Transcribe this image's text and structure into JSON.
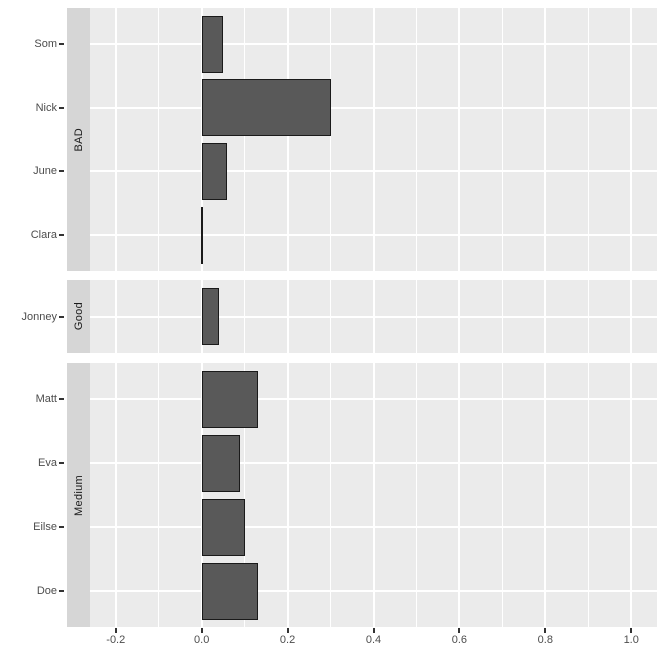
{
  "chart_data": {
    "type": "bar",
    "orientation": "horizontal",
    "title": "",
    "xlabel": "",
    "ylabel": "",
    "xlim": [
      -0.26,
      1.06
    ],
    "x_major_ticks": [
      -0.2,
      0.0,
      0.2,
      0.4,
      0.6,
      0.8,
      1.0
    ],
    "x_tick_labels": [
      "-0.2",
      "0.0",
      "0.2",
      "0.4",
      "0.6",
      "0.8",
      "1.0"
    ],
    "x_minor_ticks": [
      -0.1,
      0.1,
      0.3,
      0.5,
      0.7,
      0.9
    ],
    "grid": "on",
    "legend": "none",
    "facets": [
      {
        "label": "BAD",
        "categories": [
          "Som",
          "Nick",
          "June",
          "Clara"
        ],
        "values": [
          0.05,
          0.3,
          0.06,
          0.0
        ]
      },
      {
        "label": "Good",
        "categories": [
          "Jonney"
        ],
        "values": [
          0.04
        ]
      },
      {
        "label": "Medium",
        "categories": [
          "Matt",
          "Eva",
          "Eilse",
          "Doe"
        ],
        "values": [
          0.13,
          0.09,
          0.1,
          0.13
        ]
      }
    ],
    "colors": {
      "bar_fill": "#595959",
      "bar_border": "#1a1a1a",
      "panel_bg": "#ebebeb",
      "strip_bg": "#d6d6d6",
      "gridline": "#ffffff",
      "tick_mark": "#333333",
      "axis_text": "#4d4d4d",
      "strip_text": "#1a1a1a",
      "background": "#ffffff"
    }
  }
}
